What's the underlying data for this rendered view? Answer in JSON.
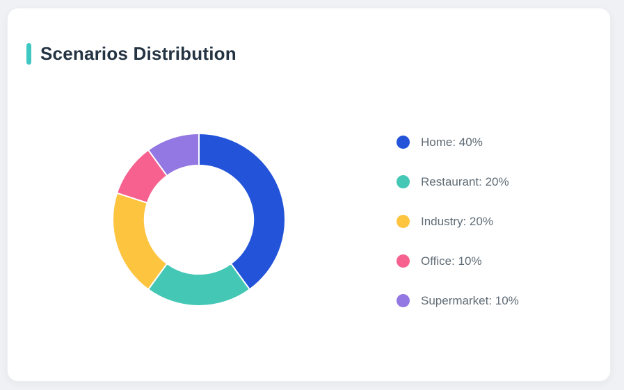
{
  "card": {
    "title": "Scenarios Distribution"
  },
  "theme": {
    "page_bg": "#eff1f4",
    "card_bg": "#ffffff",
    "accent_color": "#3ec8c1",
    "title_color": "#243342",
    "legend_text_color": "#5f6b75",
    "segment_border_color": "#ffffff"
  },
  "chart_data": {
    "type": "pie",
    "variant": "donut",
    "title": "Scenarios Distribution",
    "categories": [
      "Home",
      "Restaurant",
      "Industry",
      "Office",
      "Supermarket"
    ],
    "values": [
      40,
      20,
      20,
      10,
      10
    ],
    "unit": "%",
    "colors": [
      "#2253d9",
      "#44c7b5",
      "#fdc440",
      "#f6618f",
      "#9377e2"
    ],
    "legend_labels": [
      "Home: 40%",
      "Restaurant: 20%",
      "Industry: 20%",
      "Office: 10%",
      "Supermarket: 10%"
    ],
    "start_angle_deg": 0,
    "direction": "clockwise",
    "cutout_ratio": 0.63,
    "legend_position": "right",
    "data_labels_on_slices": false
  }
}
